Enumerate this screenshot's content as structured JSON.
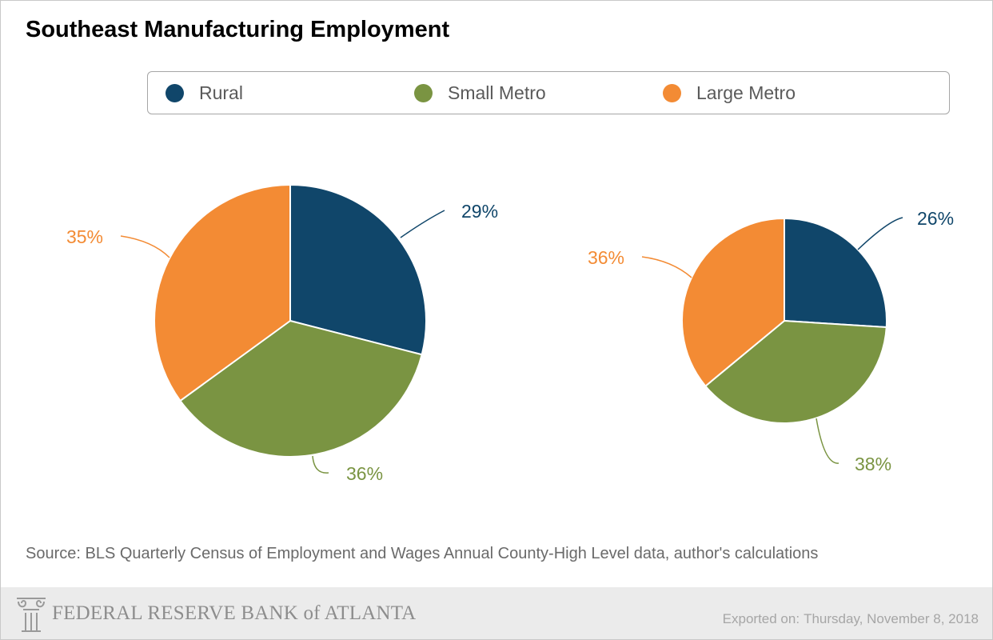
{
  "header": {
    "title": "Southeast Manufacturing Employment"
  },
  "legend": [
    {
      "label": "Rural",
      "color": "#10466a"
    },
    {
      "label": "Small Metro",
      "color": "#7a9442"
    },
    {
      "label": "Large Metro",
      "color": "#f38b34"
    }
  ],
  "chart_data": [
    {
      "type": "pie",
      "categories": [
        "Rural",
        "Small Metro",
        "Large Metro"
      ],
      "values": [
        29,
        36,
        35
      ],
      "labels": [
        "29%",
        "36%",
        "35%"
      ],
      "colors": [
        "#10466a",
        "#7a9442",
        "#f38b34"
      ]
    },
    {
      "type": "pie",
      "categories": [
        "Rural",
        "Small Metro",
        "Large Metro"
      ],
      "values": [
        26,
        38,
        36
      ],
      "labels": [
        "26%",
        "38%",
        "36%"
      ],
      "colors": [
        "#10466a",
        "#7a9442",
        "#f38b34"
      ]
    }
  ],
  "source": "Source: BLS Quarterly Census of Employment and Wages Annual County-High Level data, author's calculations",
  "footer": {
    "logo_text": "FEDERAL RESERVE BANK of ATLANTA",
    "logo_icon": "column-capital-icon",
    "export_prefix": "Exported on:",
    "export_date": "Thursday, November 8, 2018"
  }
}
